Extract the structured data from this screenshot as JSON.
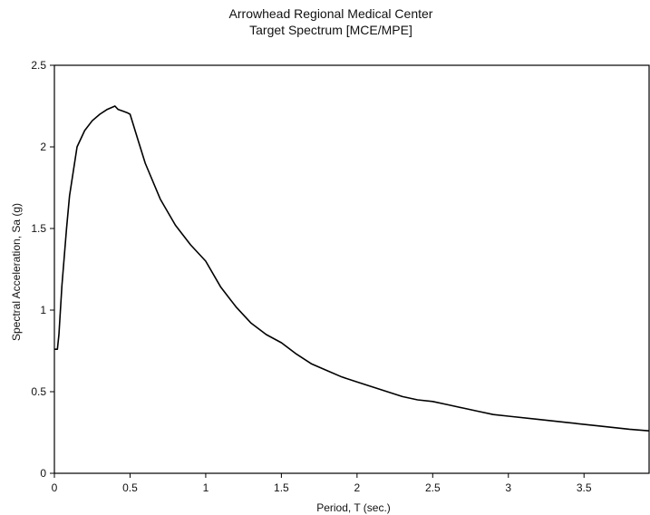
{
  "chart_data": {
    "type": "line",
    "title": "Arrowhead Regional Medical Center",
    "subtitle": "Target Spectrum [MCE/MPE]",
    "xlabel": "Period, T (sec.)",
    "ylabel": "Spectral Acceleration, Sa (g)",
    "xlim": [
      0,
      3.93
    ],
    "ylim": [
      0,
      2.5
    ],
    "xticks": [
      0,
      0.5,
      1,
      1.5,
      2,
      2.5,
      3,
      3.5
    ],
    "xtick_labels": [
      "0",
      "0.5",
      "1",
      "1.5",
      "2",
      "2.5",
      "3",
      "3.5"
    ],
    "yticks": [
      0,
      0.5,
      1,
      1.5,
      2,
      2.5
    ],
    "ytick_labels": [
      "0",
      "0.5",
      "1",
      "1.5",
      "2",
      "2.5"
    ],
    "grid": false,
    "legend": "none",
    "line_color": "#000000",
    "series": [
      {
        "x": [
          0.0,
          0.02,
          0.03,
          0.05,
          0.08,
          0.1,
          0.15,
          0.2,
          0.25,
          0.3,
          0.35,
          0.4,
          0.42,
          0.45,
          0.48,
          0.5,
          0.55,
          0.6,
          0.7,
          0.8,
          0.9,
          1.0,
          1.1,
          1.2,
          1.3,
          1.4,
          1.5,
          1.6,
          1.7,
          1.8,
          1.9,
          2.0,
          2.1,
          2.2,
          2.3,
          2.4,
          2.5,
          2.6,
          2.7,
          2.8,
          2.9,
          3.0,
          3.2,
          3.4,
          3.6,
          3.8,
          3.93
        ],
        "y": [
          0.76,
          0.76,
          0.85,
          1.15,
          1.5,
          1.7,
          2.0,
          2.1,
          2.16,
          2.2,
          2.23,
          2.25,
          2.23,
          2.22,
          2.21,
          2.2,
          2.05,
          1.9,
          1.68,
          1.52,
          1.4,
          1.3,
          1.14,
          1.02,
          0.92,
          0.85,
          0.8,
          0.73,
          0.67,
          0.63,
          0.59,
          0.56,
          0.53,
          0.5,
          0.47,
          0.45,
          0.44,
          0.42,
          0.4,
          0.38,
          0.36,
          0.35,
          0.33,
          0.31,
          0.29,
          0.27,
          0.26
        ]
      }
    ]
  }
}
